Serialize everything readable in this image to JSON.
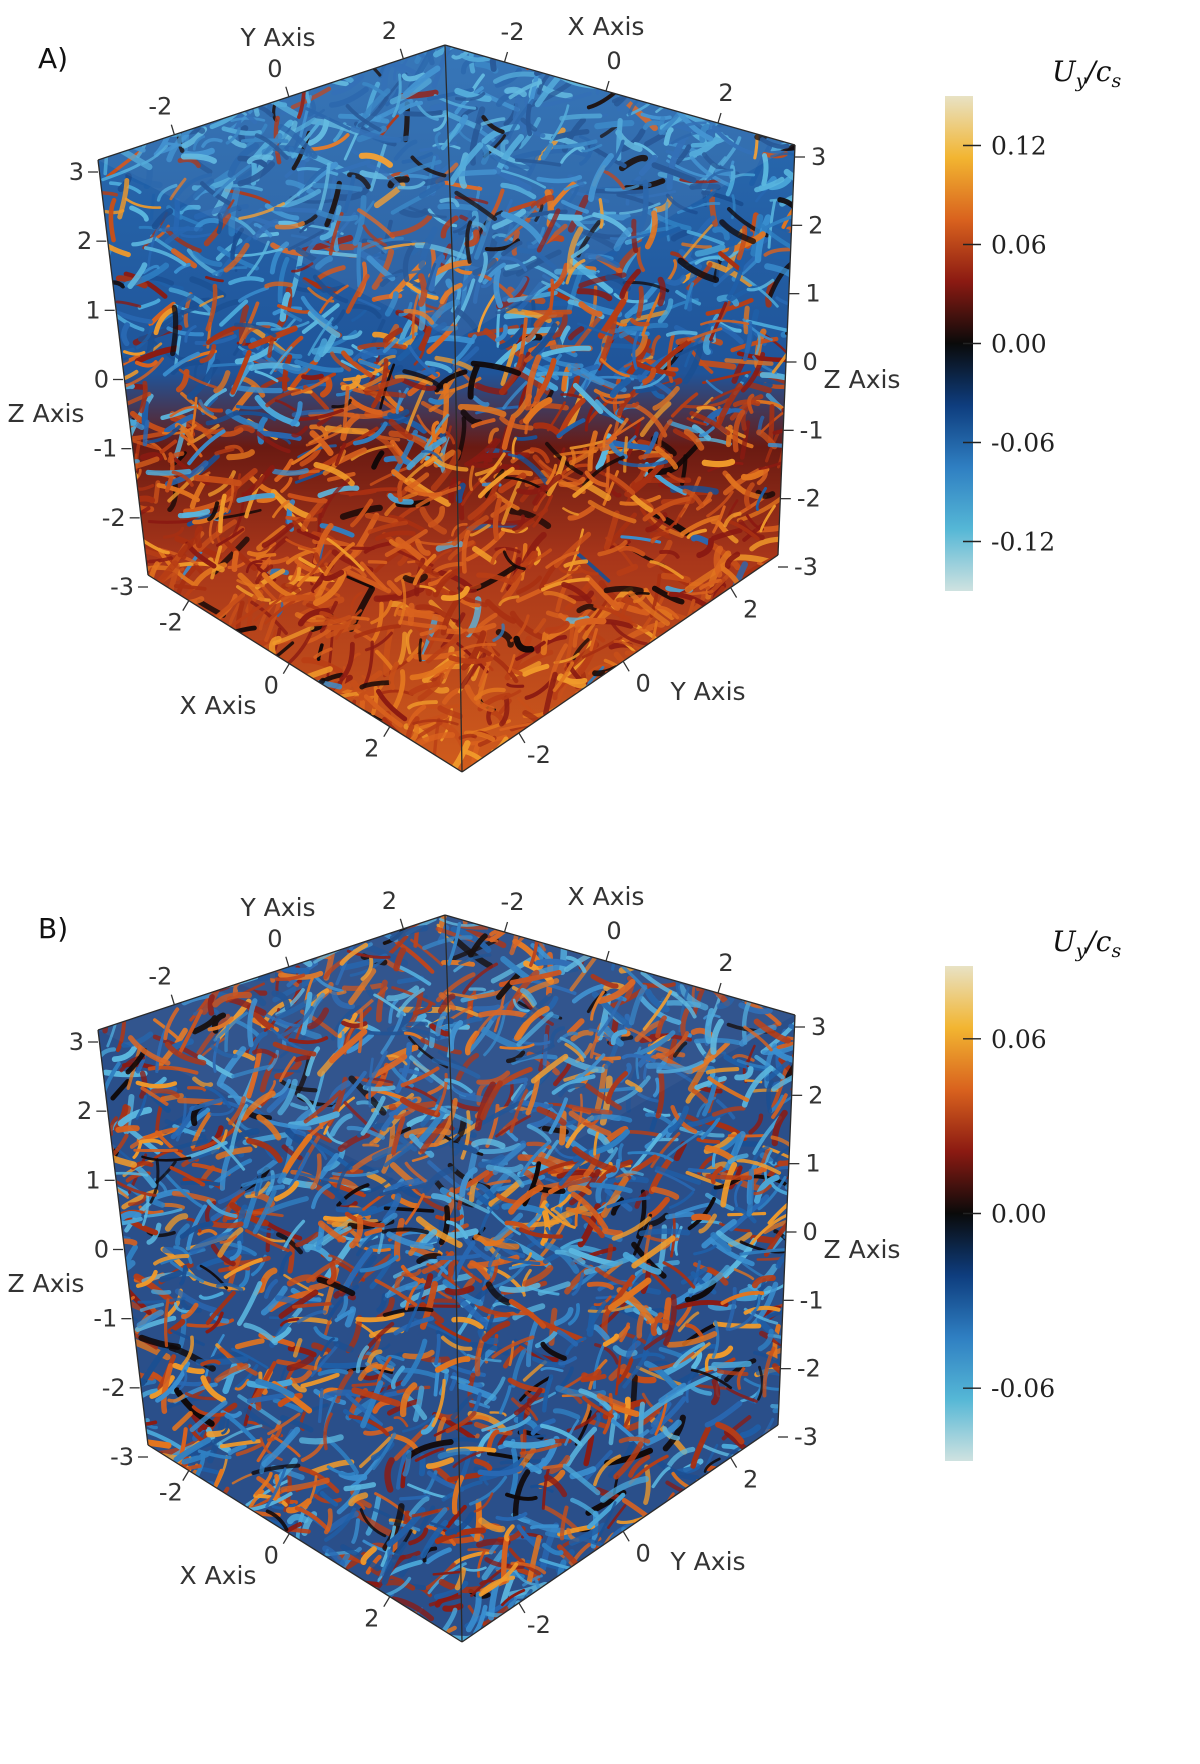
{
  "panels": [
    {
      "label": "A)",
      "colorbar": {
        "title_main": "U",
        "title_sub": "y",
        "title_sep": "/c",
        "title_sub2": "s",
        "ticks": [
          "0.12",
          "0.06",
          "0.00",
          "-0.06",
          "-0.12"
        ],
        "tick_values": [
          0.12,
          0.06,
          0.0,
          -0.06,
          -0.12
        ],
        "range": [
          -0.15,
          0.15
        ],
        "stops": [
          "#e8e2c4",
          "#f2b531",
          "#d9621e",
          "#8b1a12",
          "#0a0a0a",
          "#0e3d7e",
          "#2f7fc2",
          "#55b7d6",
          "#cfe2e0"
        ]
      },
      "axes": {
        "y_axis_label": "Y Axis",
        "x_axis_label": "X Axis",
        "z_axis_label": "Z Axis",
        "top_y_ticks": [
          "-2",
          "0",
          "2"
        ],
        "top_x_ticks": [
          "-2",
          "0",
          "2"
        ],
        "left_z_ticks": [
          "3",
          "2",
          "1",
          "0",
          "-1",
          "-2",
          "-3"
        ],
        "right_z_ticks": [
          "3",
          "2",
          "1",
          "0",
          "-1",
          "-2",
          "-3"
        ],
        "bottom_x_ticks": [
          "-2",
          "0",
          "2"
        ],
        "bottom_y_ticks": [
          "2",
          "0",
          "-2"
        ]
      },
      "colors": {
        "upper": "#2f6fb0",
        "lower": "#c84f19"
      }
    },
    {
      "label": "B)",
      "colorbar": {
        "title_main": "U",
        "title_sub": "y",
        "title_sep": "/c",
        "title_sub2": "s",
        "ticks": [
          "0.06",
          "0.00",
          "-0.06"
        ],
        "tick_values": [
          0.06,
          0.0,
          -0.06
        ],
        "range": [
          -0.085,
          0.085
        ],
        "stops": [
          "#e8e2c4",
          "#f2b531",
          "#d9621e",
          "#8b1a12",
          "#0a0a0a",
          "#0e3d7e",
          "#2f7fc2",
          "#55b7d6",
          "#cfe2e0"
        ]
      },
      "axes": {
        "y_axis_label": "Y Axis",
        "x_axis_label": "X Axis",
        "z_axis_label": "Z Axis",
        "top_y_ticks": [
          "-2",
          "0",
          "2"
        ],
        "top_x_ticks": [
          "-2",
          "0",
          "2"
        ],
        "left_z_ticks": [
          "3",
          "2",
          "1",
          "0",
          "-1",
          "-2",
          "-3"
        ],
        "right_z_ticks": [
          "3",
          "2",
          "1",
          "0",
          "-1",
          "-2",
          "-3"
        ],
        "bottom_x_ticks": [
          "-2",
          "0",
          "2"
        ],
        "bottom_y_ticks": [
          "2",
          "0",
          "-2"
        ]
      },
      "colors": {
        "upper": "#2f6fb0",
        "lower": "#c84f19"
      }
    }
  ]
}
